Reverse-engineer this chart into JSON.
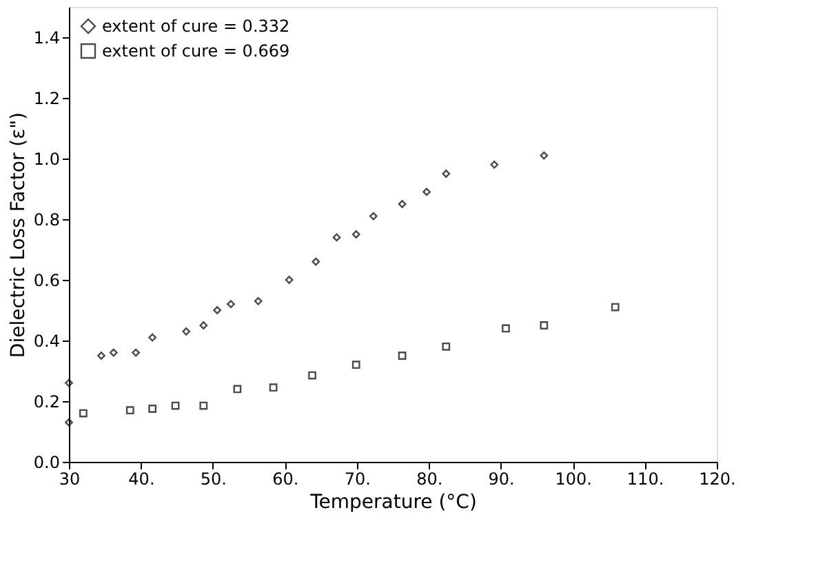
{
  "chart_data": {
    "type": "scatter",
    "xlabel": "Temperature (°C)",
    "ylabel": "Dielectric Loss Factor (ε\")",
    "xlim": [
      30,
      120
    ],
    "ylim": [
      0,
      1.5
    ],
    "xticks": [
      30,
      {
        "value": 40,
        "label": "40."
      },
      {
        "value": 50,
        "label": "50."
      },
      {
        "value": 60,
        "label": "60."
      },
      {
        "value": 70,
        "label": "70."
      },
      {
        "value": 80,
        "label": "80."
      },
      {
        "value": 90,
        "label": "90."
      },
      {
        "value": 100,
        "label": "100."
      },
      {
        "value": 110,
        "label": "110."
      },
      {
        "value": 120,
        "label": "120."
      }
    ],
    "yticks": [
      {
        "value": 0,
        "label": "0.0"
      },
      {
        "value": 0.2,
        "label": "0.2"
      },
      {
        "value": 0.4,
        "label": "0.4"
      },
      {
        "value": 0.6,
        "label": "0.6"
      },
      {
        "value": 0.8,
        "label": "0.8"
      },
      {
        "value": 1.0,
        "label": "1.0"
      },
      {
        "value": 1.2,
        "label": "1.2"
      },
      {
        "value": 1.4,
        "label": "1.4"
      }
    ],
    "series": [
      {
        "name": "extent of cure = 0.332",
        "color": "#000000",
        "marker": "diamond",
        "x": [
          30,
          30,
          34.5,
          36.2,
          39.3,
          41.6,
          46.3,
          48.7,
          50.6,
          52.5,
          56.3,
          60.6,
          64.3,
          67.2,
          69.9,
          72.3,
          76.3,
          79.7,
          82.4,
          89.1,
          96.0
        ],
        "values": [
          0.13,
          0.26,
          0.35,
          0.36,
          0.36,
          0.41,
          0.43,
          0.45,
          0.5,
          0.52,
          0.53,
          0.6,
          0.66,
          0.74,
          0.75,
          0.81,
          0.85,
          0.89,
          0.95,
          0.98,
          1.01
        ]
      },
      {
        "name": "extent of cure = 0.669",
        "color": "#000000",
        "marker": "square",
        "x": [
          32.0,
          38.5,
          41.6,
          44.8,
          48.7,
          53.4,
          58.4,
          63.8,
          69.9,
          76.3,
          82.4,
          90.7,
          96.0,
          105.9
        ],
        "values": [
          0.16,
          0.17,
          0.175,
          0.185,
          0.185,
          0.24,
          0.245,
          0.285,
          0.32,
          0.35,
          0.38,
          0.44,
          0.45,
          0.51
        ]
      }
    ],
    "legend": "top left",
    "grid": false
  }
}
